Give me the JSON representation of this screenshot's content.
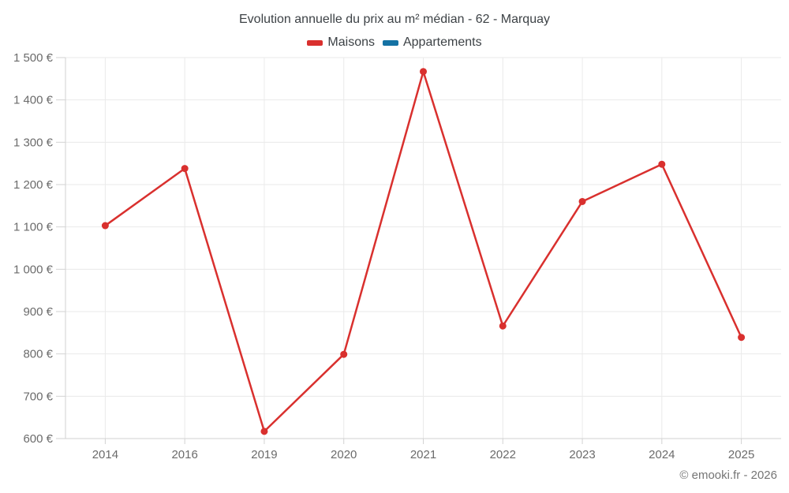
{
  "chart_data": {
    "type": "line",
    "title": "Evolution annuelle du prix au m² médian - 62 - Marquay",
    "categories": [
      "2014",
      "2016",
      "2019",
      "2020",
      "2021",
      "2022",
      "2023",
      "2024",
      "2025"
    ],
    "series": [
      {
        "name": "Maisons",
        "color": "#d9302e",
        "values": [
          1103,
          1238,
          617,
          799,
          1467,
          866,
          1160,
          1248,
          839
        ]
      },
      {
        "name": "Appartements",
        "color": "#1472a4",
        "values": []
      }
    ],
    "xlabel": "",
    "ylabel": "",
    "ylim": [
      600,
      1500
    ],
    "ytick_step": 100,
    "ytick_labels": [
      "600 €",
      "700 €",
      "800 €",
      "900 €",
      "1 000 €",
      "1 100 €",
      "1 200 €",
      "1 300 €",
      "1 400 €",
      "1 500 €"
    ],
    "grid": true,
    "legend_position": "top",
    "copyright": "© emooki.fr - 2026"
  },
  "colors": {
    "grid": "#eaeaea",
    "axis": "#d2d2d2",
    "tick": "#d2d2d2",
    "tick_label": "#6b6b6b",
    "title_text": "#3d4246"
  }
}
